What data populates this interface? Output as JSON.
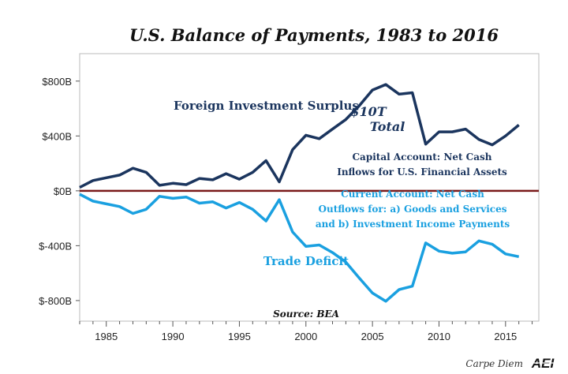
{
  "chart_data": {
    "type": "line",
    "title": "U.S. Balance of Payments, 1983 to 2016",
    "source": "Source: BEA",
    "credit": "Carpe Diem",
    "logo_text": "AEI",
    "x_ticks": [
      1985,
      1990,
      1995,
      2000,
      2005,
      2010,
      2015
    ],
    "y_ticks": [
      800,
      400,
      0,
      -400,
      -800
    ],
    "y_tick_labels": [
      "$800B",
      "$400B",
      "$0B",
      "$-400B",
      "$-800B"
    ],
    "xlim": [
      1983,
      2017.5
    ],
    "ylim": [
      -950,
      1000
    ],
    "x": [
      1983,
      1984,
      1985,
      1986,
      1987,
      1988,
      1989,
      1990,
      1991,
      1992,
      1993,
      1994,
      1995,
      1996,
      1997,
      1998,
      1999,
      2000,
      2001,
      2002,
      2003,
      2004,
      2005,
      2006,
      2007,
      2008,
      2009,
      2010,
      2011,
      2012,
      2013,
      2014,
      2015,
      2016
    ],
    "series": [
      {
        "name": "Foreign Investment Surplus",
        "color": "#1b355e",
        "values": [
          25,
          75,
          95,
          115,
          165,
          135,
          40,
          55,
          45,
          90,
          80,
          125,
          85,
          135,
          220,
          65,
          300,
          405,
          380,
          450,
          520,
          620,
          735,
          775,
          705,
          715,
          340,
          430,
          430,
          450,
          375,
          335,
          400,
          480
        ]
      },
      {
        "name": "Trade Deficit",
        "color": "#1aa0e0",
        "values": [
          -25,
          -75,
          -95,
          -115,
          -165,
          -135,
          -40,
          -55,
          -45,
          -90,
          -80,
          -125,
          -85,
          -135,
          -220,
          -65,
          -300,
          -405,
          -395,
          -450,
          -520,
          -635,
          -745,
          -805,
          -720,
          -695,
          -380,
          -440,
          -455,
          -445,
          -365,
          -390,
          -460,
          -480
        ]
      }
    ],
    "annotations": {
      "surplus_label": "Foreign Investment Surplus",
      "total_line1": "$10T",
      "total_line2": "Total",
      "capital_line1": "Capital Account: Net Cash",
      "capital_line2": "Inflows for U.S. Financial Assets",
      "current_line1": "Current Account: Net Cash",
      "current_line2": "Outflows for: a) Goods and Services",
      "current_line3": "and b) Investment Income Payments",
      "deficit_label": "Trade Deficit"
    },
    "zero_line_color": "#7a1a1a"
  }
}
